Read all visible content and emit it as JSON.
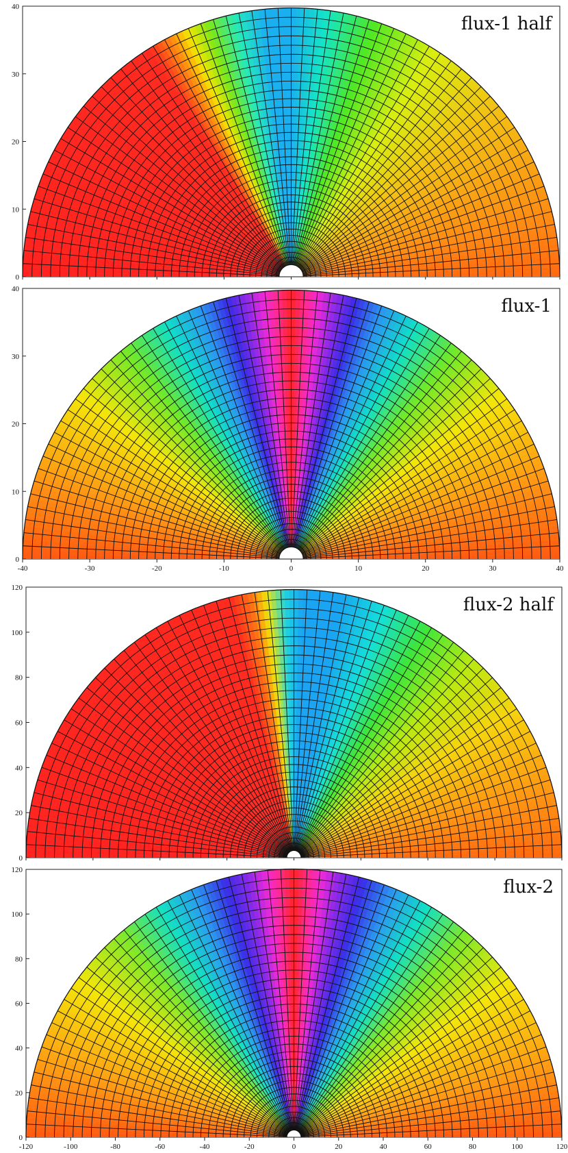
{
  "chart_data": [
    {
      "type": "heatmap",
      "subtype": "polar-half-disk",
      "label": "flux-1 half",
      "xlim": [
        -40,
        40
      ],
      "ylim": [
        0,
        40
      ],
      "yticks": [
        0,
        10,
        20,
        30,
        40
      ],
      "xticks": [],
      "radius_max": 40,
      "hole_radius": 1.8,
      "grid": "polar mesh",
      "pattern": "asymmetric",
      "color_stops_by_angle_deg": [
        [
          0,
          "#ff6a10"
        ],
        [
          12,
          "#ff8a14"
        ],
        [
          40,
          "#f2c214"
        ],
        [
          58,
          "#d8ef10"
        ],
        [
          72,
          "#4fe824"
        ],
        [
          82,
          "#14e6c4"
        ],
        [
          90,
          "#1ab0f0"
        ],
        [
          96,
          "#1ab0f0"
        ],
        [
          102,
          "#24eabc"
        ],
        [
          108,
          "#7ae81c"
        ],
        [
          113,
          "#f5e600"
        ],
        [
          116,
          "#ff9a10"
        ],
        [
          122,
          "#ff2a20"
        ],
        [
          180,
          "#ff2420"
        ]
      ],
      "label_position": "top-right"
    },
    {
      "type": "heatmap",
      "subtype": "polar-half-disk",
      "label": "flux-1",
      "xlim": [
        -40,
        40
      ],
      "ylim": [
        0,
        40
      ],
      "yticks": [
        0,
        10,
        20,
        30,
        40
      ],
      "xticks": [
        -40,
        -30,
        -20,
        -10,
        0,
        10,
        20,
        30,
        40
      ],
      "radius_max": 40,
      "hole_radius": 1.8,
      "grid": "polar mesh",
      "pattern": "symmetric",
      "color_stops_by_angle_deg": [
        [
          0,
          "#ff5a12"
        ],
        [
          18,
          "#ff9814"
        ],
        [
          38,
          "#f4e60a"
        ],
        [
          52,
          "#6fe82a"
        ],
        [
          62,
          "#10e0c8"
        ],
        [
          70,
          "#2a96f0"
        ],
        [
          76,
          "#3a2ce6"
        ],
        [
          80,
          "#8a2ae8"
        ],
        [
          84,
          "#f02ad8"
        ],
        [
          87,
          "#ff2a8a"
        ],
        [
          90,
          "#ff2424"
        ]
      ],
      "label_position": "top-right"
    },
    {
      "type": "heatmap",
      "subtype": "polar-half-disk",
      "label": "flux-2 half",
      "xlim": [
        -120,
        120
      ],
      "ylim": [
        0,
        120
      ],
      "yticks": [
        0,
        20,
        40,
        60,
        80,
        100,
        120
      ],
      "xticks": [],
      "radius_max": 120,
      "hole_radius": 3.2,
      "grid": "polar mesh",
      "pattern": "asymmetric",
      "color_stops_by_angle_deg": [
        [
          0,
          "#ff6a10"
        ],
        [
          14,
          "#ff9414"
        ],
        [
          34,
          "#f6d40e"
        ],
        [
          48,
          "#b8ea12"
        ],
        [
          60,
          "#3ee63a"
        ],
        [
          70,
          "#14e0d8"
        ],
        [
          80,
          "#1aa4f2"
        ],
        [
          88,
          "#1aa4f2"
        ],
        [
          92,
          "#1fd4e0"
        ],
        [
          96,
          "#f0e60a"
        ],
        [
          99,
          "#ff7a14"
        ],
        [
          104,
          "#ff2a20"
        ],
        [
          180,
          "#ff2420"
        ]
      ],
      "label_position": "top-right"
    },
    {
      "type": "heatmap",
      "subtype": "polar-half-disk",
      "label": "flux-2",
      "xlim": [
        -120,
        120
      ],
      "ylim": [
        0,
        120
      ],
      "yticks": [
        0,
        20,
        40,
        60,
        80,
        100,
        120
      ],
      "xticks": [
        -120,
        -100,
        -80,
        -60,
        -40,
        -20,
        0,
        20,
        40,
        60,
        80,
        100,
        120
      ],
      "radius_max": 120,
      "hole_radius": 3.2,
      "grid": "polar mesh",
      "pattern": "symmetric",
      "color_stops_by_angle_deg": [
        [
          0,
          "#ff5a12"
        ],
        [
          16,
          "#ff9c14"
        ],
        [
          36,
          "#f4e60a"
        ],
        [
          50,
          "#7ee82a"
        ],
        [
          60,
          "#12e0c4"
        ],
        [
          68,
          "#2a9af0"
        ],
        [
          75,
          "#3a2ce6"
        ],
        [
          80,
          "#8a2ae8"
        ],
        [
          84,
          "#f02ad8"
        ],
        [
          87,
          "#ff2a8a"
        ],
        [
          90,
          "#ff2424"
        ]
      ],
      "label_position": "top-right"
    }
  ]
}
